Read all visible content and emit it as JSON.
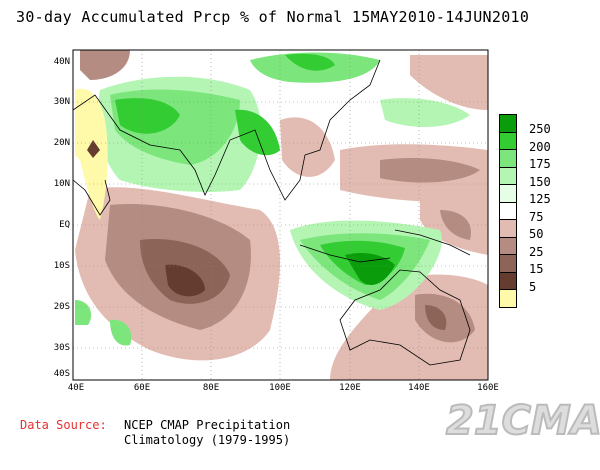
{
  "title": "30-day Accumulated Prcp % of Normal 15MAY2010-14JUN2010",
  "lat_labels": [
    "40N",
    "30N",
    "20N",
    "10N",
    "EQ",
    "10S",
    "20S",
    "30S",
    "40S"
  ],
  "lon_labels": [
    "40E",
    "60E",
    "80E",
    "100E",
    "120E",
    "140E",
    "160E"
  ],
  "legend": {
    "labels": [
      "250",
      "200",
      "175",
      "150",
      "125",
      "75",
      "50",
      "25",
      "15",
      "5"
    ],
    "colors": [
      "#0a9c0a",
      "#33cc33",
      "#7ce67c",
      "#b4f5b4",
      "#e6fde6",
      "#ffffff",
      "#e2bcb2",
      "#b48c82",
      "#8c6458",
      "#643c30",
      "#fffaaa"
    ]
  },
  "source_label": "Data Source:",
  "source_text": [
    "NCEP CMAP Precipitation",
    "Climatology (1979-1995)"
  ],
  "watermark": "21CMA"
}
